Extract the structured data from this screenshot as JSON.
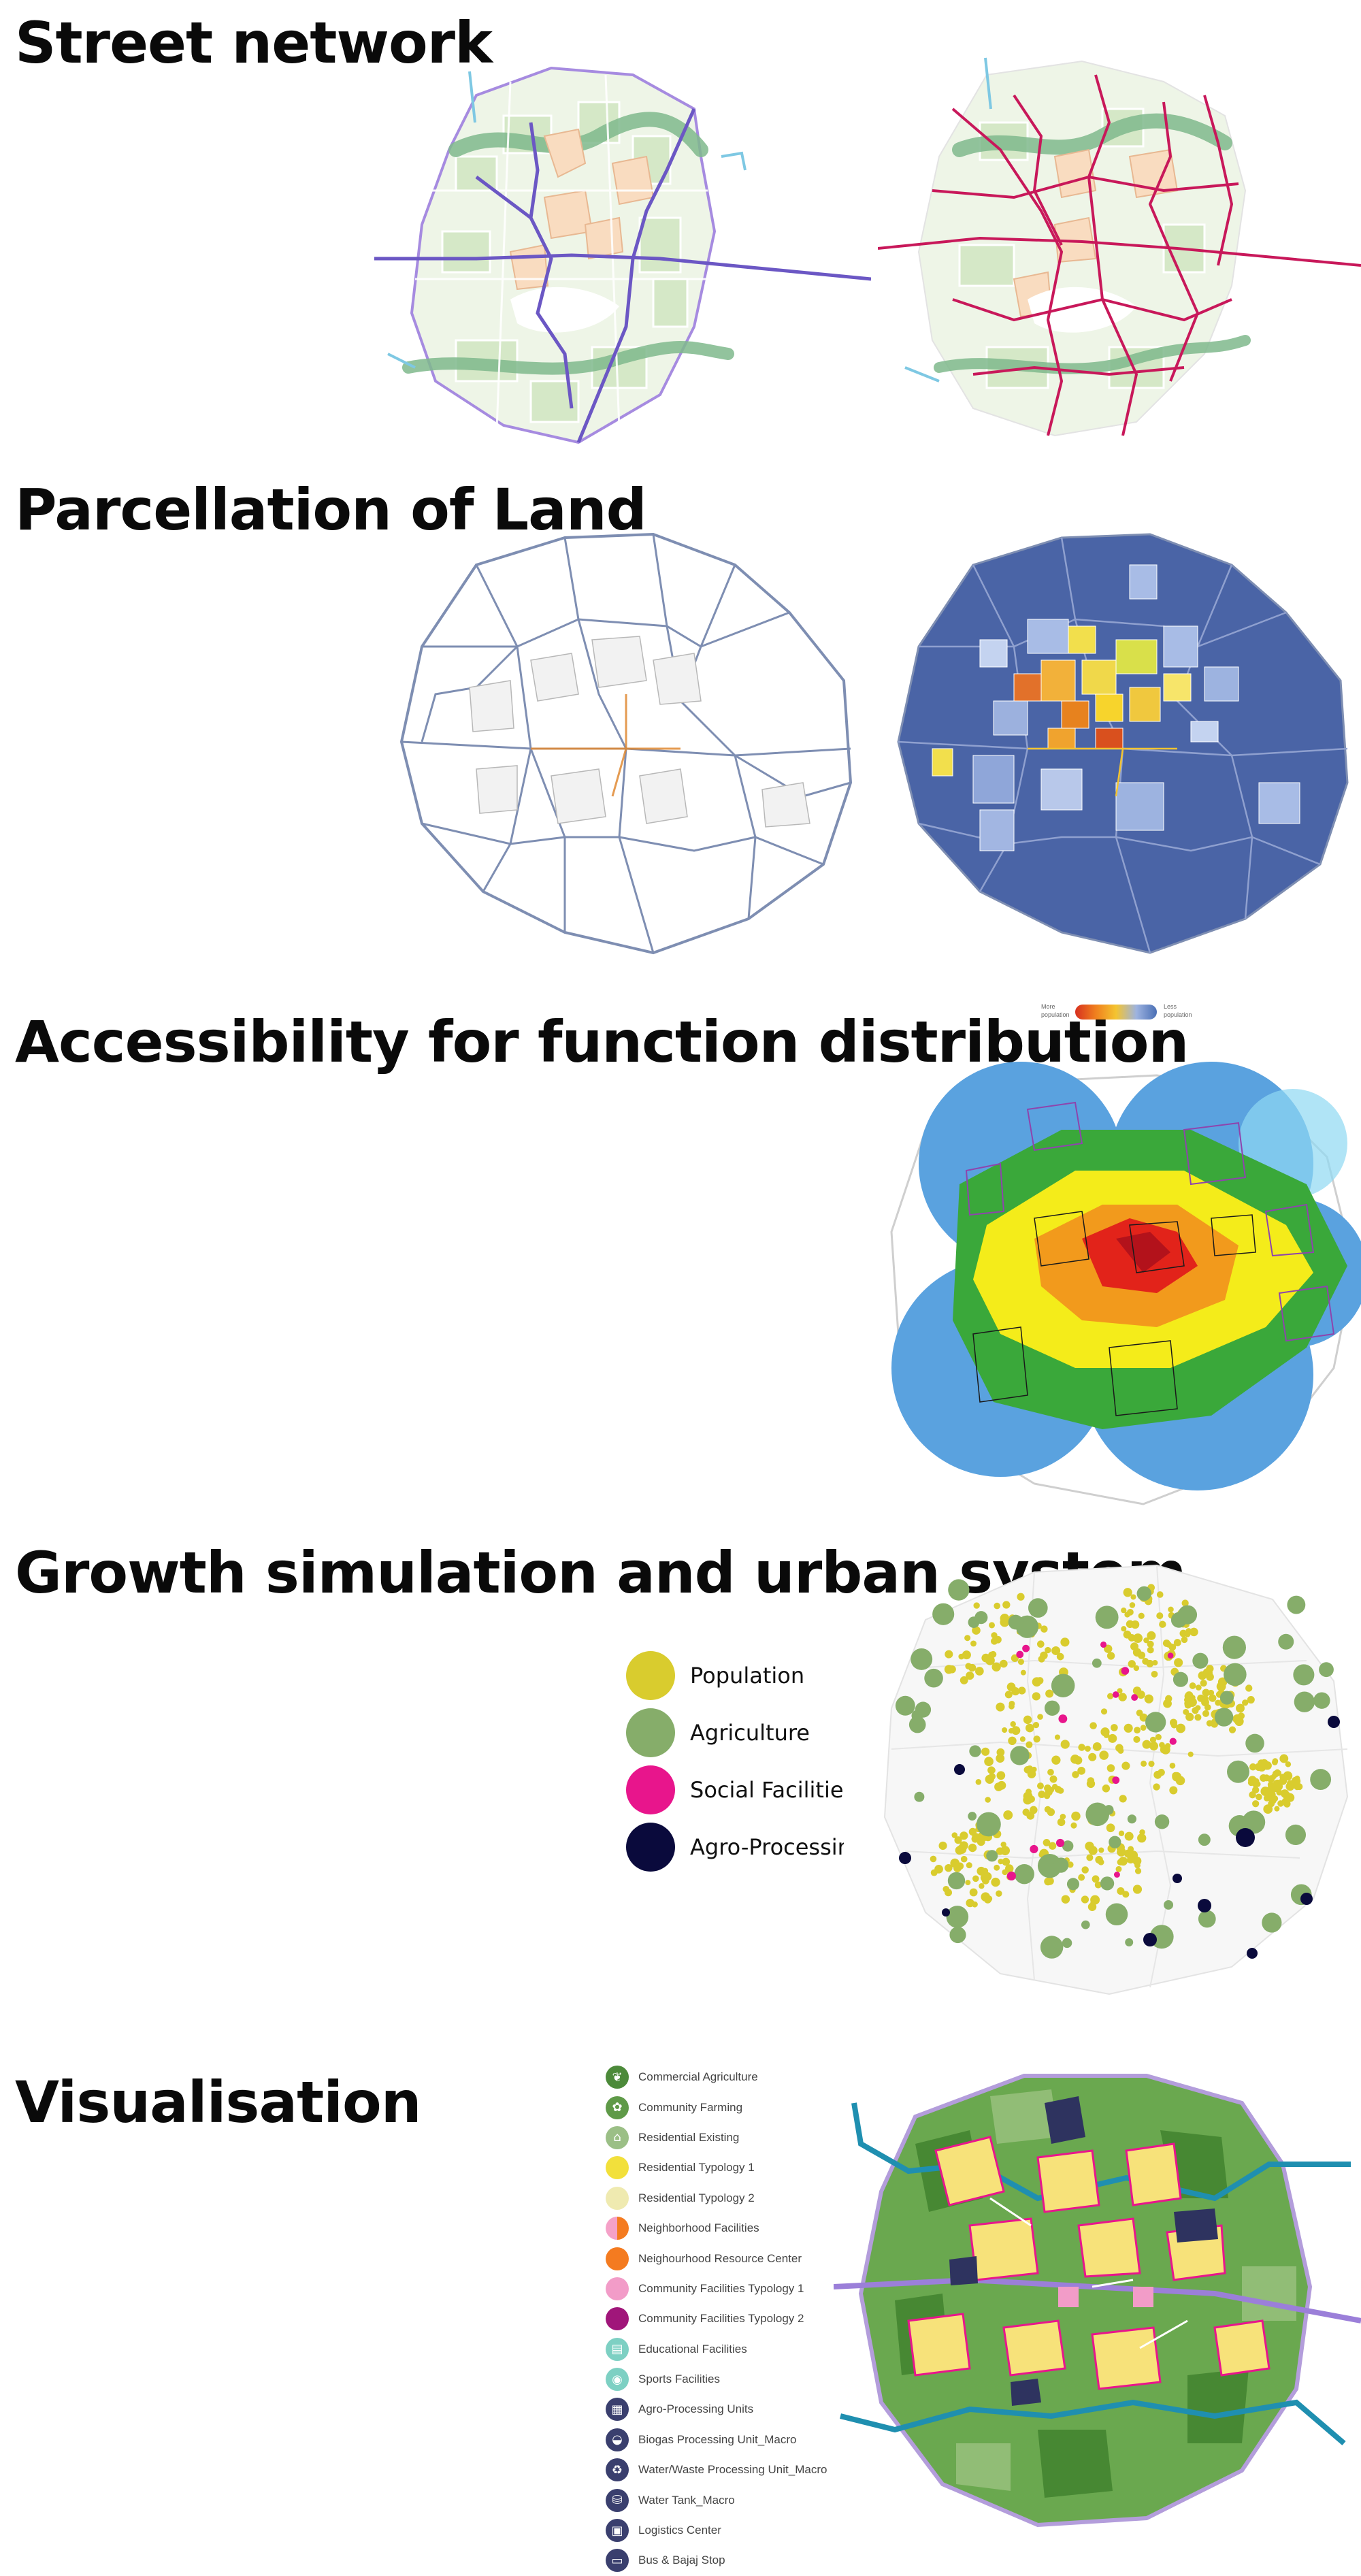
{
  "sections": {
    "street_network": "Street network",
    "parcellation": "Parcellation of Land",
    "accessibility": "Accessibility for function distribution",
    "growth": "Growth simulation and urban system",
    "visualisation": "Visualisation"
  },
  "population_scale": {
    "left_label_1": "More",
    "left_label_2": "population",
    "right_label_1": "Less",
    "right_label_2": "population"
  },
  "growth_legend": [
    {
      "label": "Population",
      "color": "#d9cc2e"
    },
    {
      "label": "Agriculture",
      "color": "#86ad6a"
    },
    {
      "label": "Social Facilities",
      "color": "#e8158c"
    },
    {
      "label": "Agro-Processing",
      "color": "#0a0a3c"
    }
  ],
  "visualisation_legend": [
    {
      "label": "Commercial Agriculture",
      "icon": "leaf-icon",
      "color": "#4c8a3a"
    },
    {
      "label": "Community Farming",
      "icon": "plant-icon",
      "color": "#5f9a48"
    },
    {
      "label": "Residential Existing",
      "icon": "house-icon",
      "color": "#9bbf86"
    },
    {
      "label": "Residential Typology 1",
      "icon": "circle-icon",
      "color": "#f2e03b"
    },
    {
      "label": "Residential Typology 2",
      "icon": "circle-icon",
      "color": "#efeab0"
    },
    {
      "label": "Neighborhood Facilities",
      "icon": "half-circle-icon",
      "color": "#f5a1c8"
    },
    {
      "label": "Neighourhood Resource Center",
      "icon": "circle-icon",
      "color": "#f47b20"
    },
    {
      "label": "Community Facilities Typology 1",
      "icon": "circle-icon",
      "color": "#f29cc8"
    },
    {
      "label": "Community Facilities Typology 2",
      "icon": "circle-icon",
      "color": "#a0167a"
    },
    {
      "label": "Educational Facilities",
      "icon": "book-icon",
      "color": "#7dd0c3"
    },
    {
      "label": "Sports Facilities",
      "icon": "ball-icon",
      "color": "#7dd0c3"
    },
    {
      "label": "Agro-Processing Units",
      "icon": "factory-icon",
      "color": "#3a3f6e"
    },
    {
      "label": "Biogas Processing Unit_Macro",
      "icon": "gas-icon",
      "color": "#3a3f6e"
    },
    {
      "label": "Water/Waste Processing Unit_Macro",
      "icon": "recycle-icon",
      "color": "#3a3f6e"
    },
    {
      "label": "Water Tank_Macro",
      "icon": "tank-icon",
      "color": "#3a3f6e"
    },
    {
      "label": "Logistics Center",
      "icon": "box-icon",
      "color": "#3a3f6e"
    },
    {
      "label": "Bus & Bajaj Stop",
      "icon": "bus-icon",
      "color": "#3a3f6e"
    }
  ],
  "colors": {
    "landscape_green": "#d5e8c7",
    "river_green": "#7fb98c",
    "residential_peach": "#f9dcc0",
    "street_purple": "#6b57c4",
    "street_red": "#c8185a",
    "parcel_navy": "#4a64a6",
    "access_blue": "#5aa2df",
    "access_green": "#3aa83a",
    "access_yellow": "#f4ec1a",
    "access_orange": "#f29a1c",
    "access_red": "#e2231a"
  }
}
